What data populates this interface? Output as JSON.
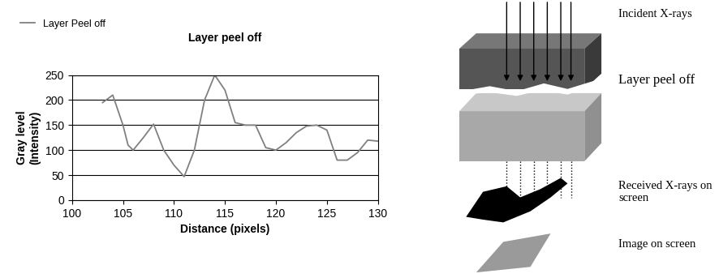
{
  "chart_data": {
    "type": "line",
    "title": "Layer peel off",
    "x_label": "Distance (pixels)",
    "y_label": "Gray level\n(Intensity)",
    "x": [
      103,
      104,
      105,
      105.5,
      106,
      107,
      108,
      109,
      110,
      111,
      112,
      113,
      114,
      115,
      116,
      117,
      118,
      119,
      120,
      121,
      122,
      123,
      124,
      125,
      126,
      127,
      128,
      129,
      130
    ],
    "series": [
      {
        "name": "Layer Peel off",
        "color": "#808080",
        "values": [
          195,
          210,
          150,
          110,
          100,
          125,
          152,
          100,
          70,
          47,
          100,
          200,
          250,
          220,
          155,
          150,
          150,
          105,
          100,
          115,
          135,
          148,
          150,
          140,
          80,
          80,
          95,
          120,
          118
        ]
      }
    ],
    "xlim": [
      100,
      130
    ],
    "xticks": [
      100,
      105,
      110,
      115,
      120,
      125,
      130
    ],
    "ylim": [
      0,
      250
    ],
    "yticks": [
      0,
      50,
      100,
      150,
      200,
      250
    ],
    "grid": true,
    "legend": "upper left"
  },
  "diagram": {
    "labels": [
      "Incident X-rays",
      "Layer peel off",
      "Received X-rays on\nscreen",
      "Image on screen"
    ]
  }
}
